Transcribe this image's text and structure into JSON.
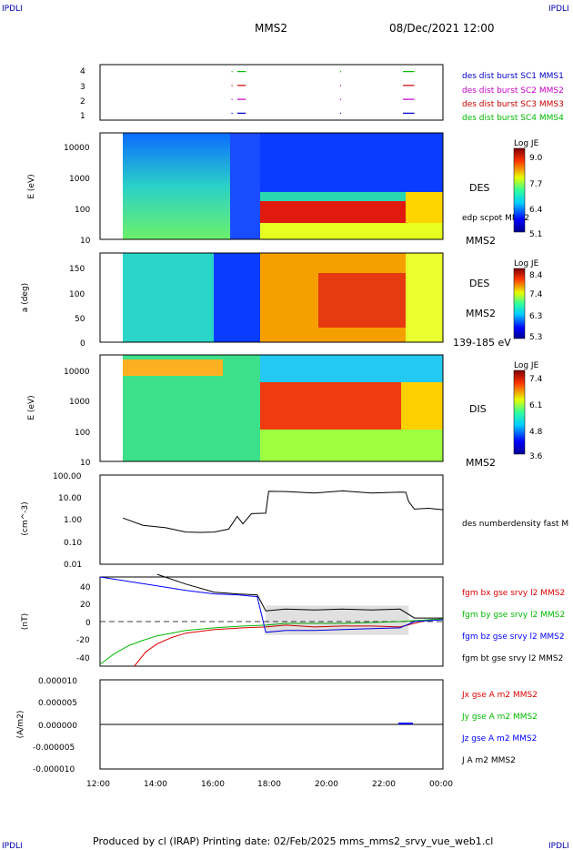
{
  "header": {
    "corner_tl": "IPDLI",
    "corner_tr": "IPDLI",
    "corner_bl": "IPDLI",
    "corner_br": "IPDLI",
    "spacecraft": "MMS2",
    "datetime": "08/Dec/2021 12:00"
  },
  "footer": "Produced by cl (IRAP)   Printing date: 02/Feb/2025   mms_mms2_srvy_vue_web1.cl",
  "colors": {
    "mms1": "#0000cc",
    "mms2": "#cc00cc",
    "mms3": "#cc0000",
    "mms4": "#00bb00",
    "bx": "#dd0000",
    "by": "#00bb00",
    "bz": "#0000ff",
    "bt": "#000000"
  },
  "chart_data": [
    {
      "type": "scatter",
      "id": "burst",
      "title": "",
      "ylabel": "",
      "y_ticks": [
        "1",
        "2",
        "3",
        "4"
      ],
      "ylim": [
        0.5,
        4.5
      ],
      "xlim_hours": [
        12,
        24
      ],
      "legend": [
        "des dist burst SC1 MMS1",
        "des dist burst SC2 MMS2",
        "des dist burst SC3 MMS3",
        "des dist burst SC4 MMS4"
      ],
      "intervals": [
        {
          "sc": 1,
          "t": [
            16.8,
            17.1
          ]
        },
        {
          "sc": 1,
          "t": [
            22.6,
            23.0
          ]
        },
        {
          "sc": 2,
          "t": [
            16.8,
            17.1
          ]
        },
        {
          "sc": 2,
          "t": [
            22.6,
            23.0
          ]
        },
        {
          "sc": 3,
          "t": [
            16.8,
            17.1
          ]
        },
        {
          "sc": 3,
          "t": [
            22.6,
            23.0
          ]
        },
        {
          "sc": 4,
          "t": [
            16.8,
            17.1
          ]
        },
        {
          "sc": 4,
          "t": [
            22.6,
            23.0
          ]
        }
      ],
      "dots_hours": [
        16.6,
        20.4
      ]
    },
    {
      "type": "heatmap",
      "id": "des_energy",
      "ylabel": "E (eV)",
      "y_ticks": [
        "10",
        "100",
        "1000",
        "10000"
      ],
      "yscale": "log",
      "ylim": [
        10,
        30000
      ],
      "colorbar_label": "Log JE",
      "colorbar_ticks": [
        "9.0",
        "7.7",
        "6.4",
        "5.1"
      ],
      "labels": [
        "DES",
        "MMS2"
      ],
      "overlay_label": "edp scpot MMS2"
    },
    {
      "type": "heatmap",
      "id": "des_pitch",
      "ylabel": "a (deg)",
      "y_ticks": [
        "0",
        "50",
        "100",
        "150"
      ],
      "ylim": [
        0,
        180
      ],
      "colorbar_label": "Log JE",
      "colorbar_ticks": [
        "8.4",
        "7.4",
        "6.3",
        "5.3"
      ],
      "labels": [
        "DES",
        "MMS2",
        "139-185 eV"
      ]
    },
    {
      "type": "heatmap",
      "id": "dis_energy",
      "ylabel": "E (eV)",
      "y_ticks": [
        "10",
        "100",
        "1000",
        "10000"
      ],
      "yscale": "log",
      "ylim": [
        10,
        30000
      ],
      "colorbar_label": "Log JE",
      "colorbar_ticks": [
        "7.4",
        "6.1",
        "4.8",
        "3.6"
      ],
      "labels": [
        "DIS",
        "MMS2"
      ]
    },
    {
      "type": "line",
      "id": "density",
      "ylabel": "(cm^-3)",
      "yscale": "log",
      "y_ticks": [
        "0.01",
        "0.10",
        "1.00",
        "10.00",
        "100.00"
      ],
      "ylim": [
        0.01,
        100
      ],
      "legend": [
        "des numberdensity fast M"
      ],
      "series": [
        {
          "name": "des numberdensity fast M",
          "x": [
            12.8,
            13.5,
            14.3,
            15.0,
            15.5,
            16.0,
            16.5,
            16.8,
            17.0,
            17.3,
            17.8,
            17.9,
            18.5,
            19.5,
            20.5,
            21.5,
            22.5,
            22.7,
            22.8,
            23.0,
            23.5,
            24.0
          ],
          "y": [
            1.1,
            0.6,
            0.4,
            0.3,
            0.25,
            0.3,
            0.35,
            1.5,
            0.6,
            2.0,
            1.8,
            20,
            17,
            17,
            18,
            17,
            16,
            18,
            6,
            3.2,
            3.0,
            3.0
          ]
        }
      ]
    },
    {
      "type": "line",
      "id": "bfield",
      "ylabel": "(nT)",
      "y_ticks": [
        "-40",
        "-20",
        "0",
        "20",
        "40"
      ],
      "ylim": [
        -50,
        50
      ],
      "legend": [
        "fgm bx gse srvy l2 MMS2",
        "fgm by gse srvy l2 MMS2",
        "fgm bz gse srvy l2 MMS2",
        "fgm bt gse srvy l2 MMS2"
      ],
      "series": [
        {
          "name": "bx",
          "x": [
            13.2,
            13.6,
            14.0,
            14.5,
            15.0,
            16.0,
            17.0,
            17.8,
            18.5,
            19.5,
            20.5,
            21.5,
            22.5,
            23.5,
            24.0
          ],
          "y": [
            -50,
            -34,
            -25,
            -18,
            -13,
            -9,
            -7,
            -6,
            -4,
            -6,
            -5,
            -5,
            -6,
            2,
            3
          ]
        },
        {
          "name": "by",
          "x": [
            12.0,
            12.5,
            13.0,
            13.5,
            14.0,
            15.0,
            16.0,
            17.0,
            17.8,
            18.5,
            19.5,
            20.5,
            21.5,
            22.5,
            23.5,
            24.0
          ],
          "y": [
            -48,
            -36,
            -27,
            -21,
            -16,
            -10,
            -7,
            -5,
            -4,
            -2,
            -2,
            -2,
            -1,
            0,
            2,
            3
          ]
        },
        {
          "name": "bz",
          "x": [
            12.0,
            13.0,
            14.0,
            15.0,
            16.0,
            16.8,
            17.5,
            17.8,
            18.5,
            19.5,
            20.5,
            21.5,
            22.5,
            23.0,
            24.0
          ],
          "y": [
            50,
            45,
            40,
            35,
            31,
            30,
            28,
            -12,
            -10,
            -10,
            -9,
            -8,
            -7,
            0,
            2
          ]
        },
        {
          "name": "bt",
          "x": [
            14.0,
            15.0,
            16.0,
            16.8,
            17.5,
            17.8,
            18.5,
            19.5,
            20.5,
            21.5,
            22.5,
            23.0,
            24.0
          ],
          "y": [
            53,
            42,
            33,
            31,
            30,
            12,
            14,
            13,
            14,
            13,
            14,
            4,
            4
          ]
        }
      ]
    },
    {
      "type": "line",
      "id": "current",
      "ylabel": "(A/m2)",
      "y_ticks": [
        "-0.000010",
        "-0.000005",
        "0.000000",
        "0.000005",
        "0.000010"
      ],
      "ylim": [
        -1e-05,
        1e-05
      ],
      "legend": [
        "Jx gse A m2 MMS2",
        "Jy gse A m2 MMS2",
        "Jz gse A m2 MMS2",
        "J A m2 MMS2"
      ],
      "x_ticks": [
        "12:00",
        "14:00",
        "16:00",
        "18:00",
        "20:00",
        "22:00",
        "00:00"
      ],
      "xlim_hours": [
        12,
        24
      ]
    }
  ]
}
